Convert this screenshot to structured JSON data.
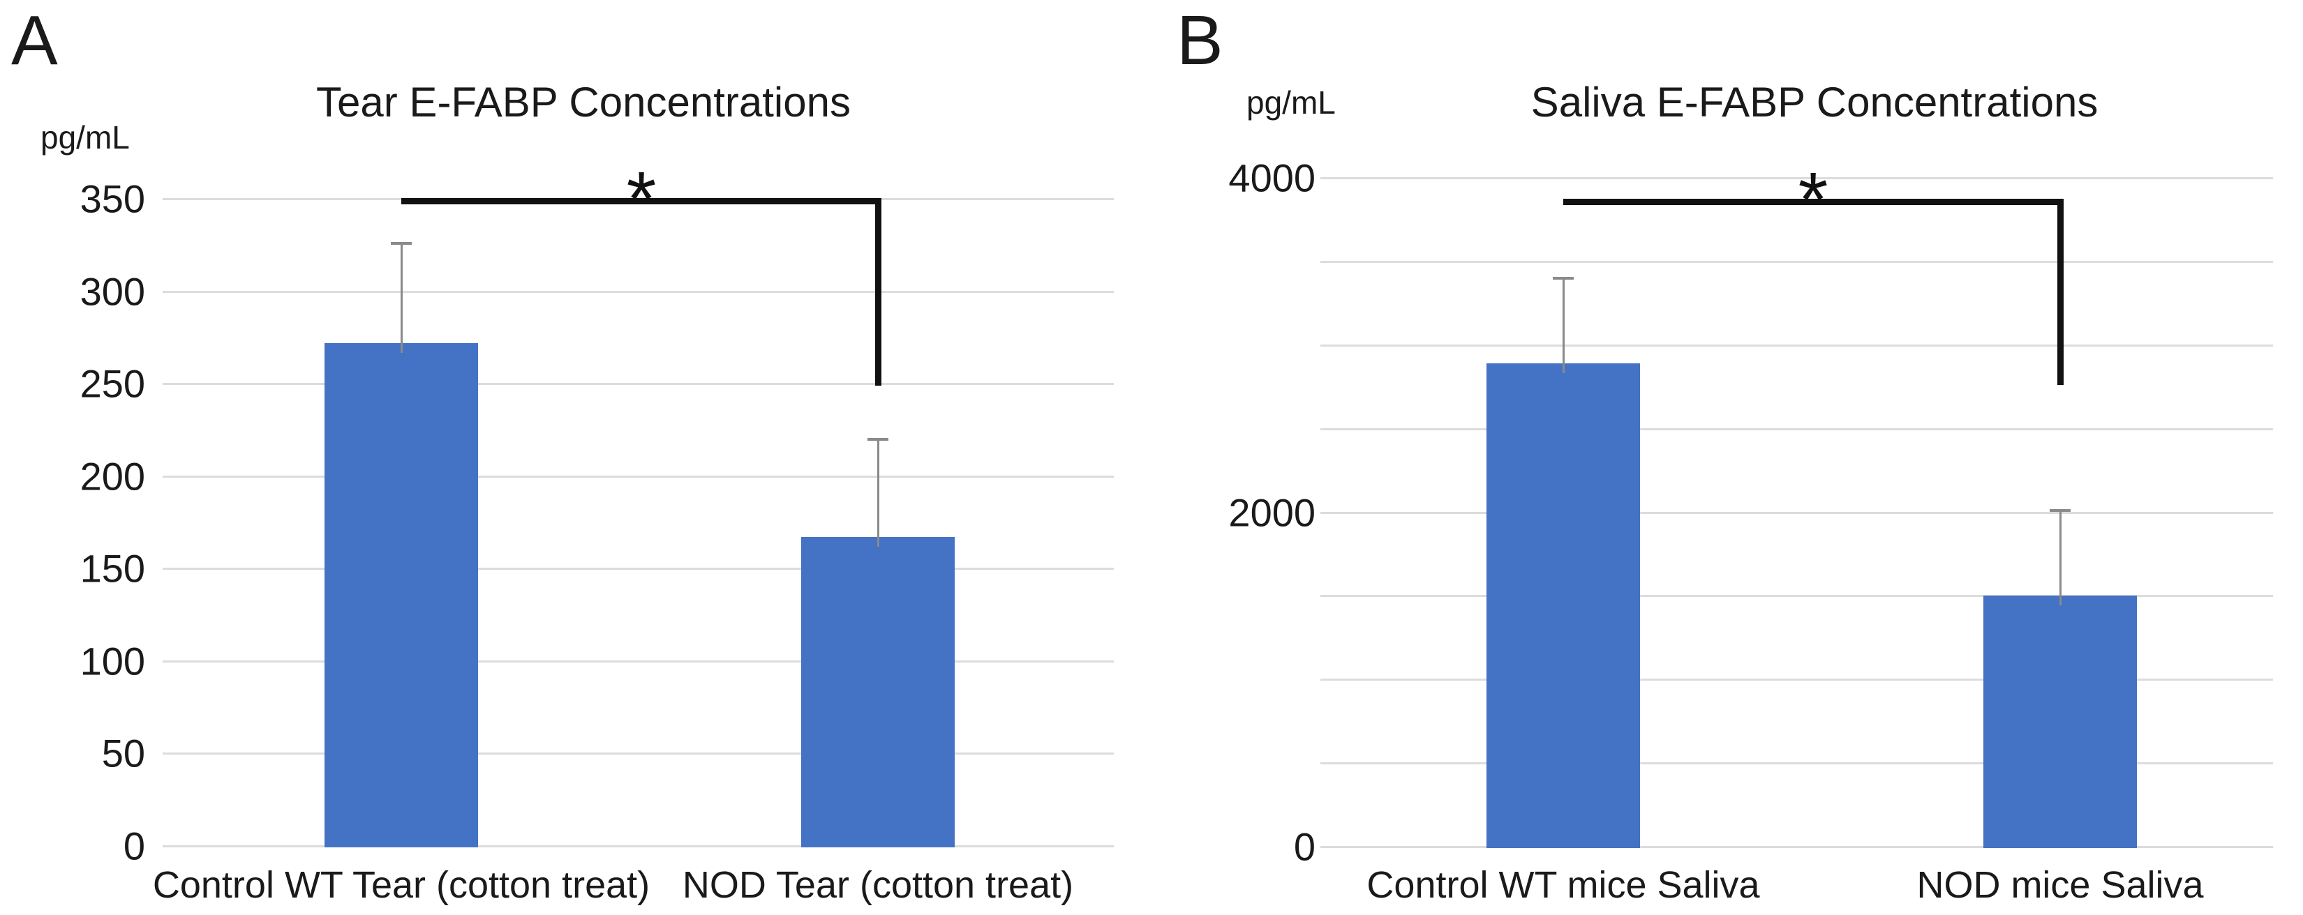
{
  "chart_data": [
    {
      "type": "bar",
      "panel_label": "A",
      "title": "Tear E-FABP Concentrations",
      "y_unit": "pg/mL",
      "xlabel": "",
      "ylabel": "pg/mL",
      "categories": [
        "Control WT Tear (cotton treat)",
        "NOD Tear (cotton treat)"
      ],
      "values": [
        272,
        167
      ],
      "error_plus": [
        54,
        53
      ],
      "ylim": [
        0,
        350
      ],
      "gridline_step": 50,
      "labeled_ticks": [
        0,
        50,
        100,
        150,
        200,
        250,
        300,
        350
      ],
      "grid": true,
      "legend_position": "none",
      "significance": {
        "marker": "*",
        "bracket_value": 349,
        "drop_to_value": 249,
        "connects": [
          0,
          1
        ]
      }
    },
    {
      "type": "bar",
      "panel_label": "B",
      "title": "Saliva E-FABP Concentrations",
      "y_unit": "pg/mL",
      "xlabel": "",
      "ylabel": "pg/mL",
      "categories": [
        "Control WT mice Saliva",
        "NOD mice Saliva"
      ],
      "values": [
        2890,
        1500
      ],
      "error_plus": [
        510,
        510
      ],
      "ylim": [
        0,
        4000
      ],
      "gridline_step": 500,
      "labeled_ticks": [
        0,
        2000,
        4000
      ],
      "grid": true,
      "legend_position": "none",
      "significance": {
        "marker": "*",
        "bracket_value": 3860,
        "drop_to_value": 2760,
        "connects": [
          0,
          1
        ]
      }
    }
  ],
  "colors": {
    "bar": "#4472C4",
    "gridline": "#DCDCDC",
    "error_bar": "#8A8A8A",
    "bracket": "#111111",
    "text": "#1A1A1A",
    "background": "#FFFFFF"
  }
}
